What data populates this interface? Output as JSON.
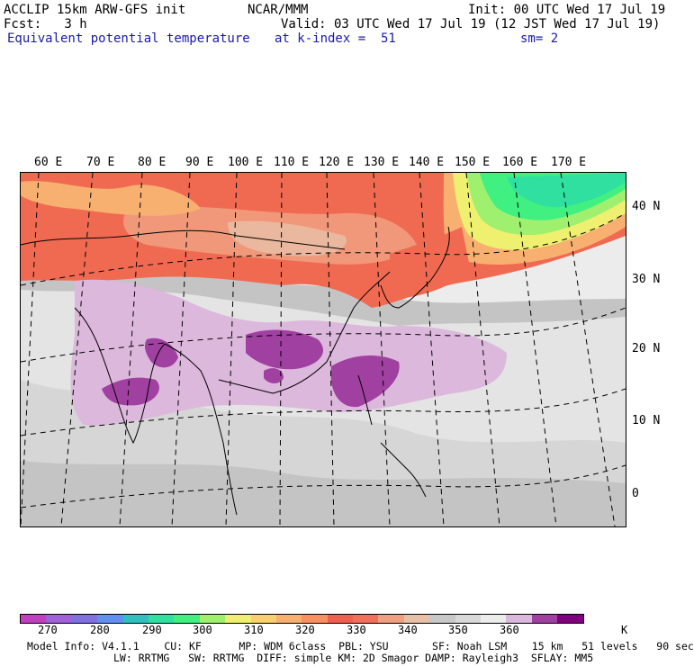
{
  "header": {
    "line1_left": "ACCLIP 15km ARW-GFS init",
    "line1_center": "NCAR/MMM",
    "line1_right": "Init: 00 UTC Wed 17 Jul 19",
    "line2_left": "Fcst:   3 h",
    "line2_right": "Valid: 03 UTC Wed 17 Jul 19 (12 JST Wed 17 Jul 19)",
    "line3_left": "Equivalent potential temperature",
    "line3_center": "at k-index =  51",
    "line3_right": "sm= 2"
  },
  "map": {
    "lon_labels": [
      "60 E",
      "70 E",
      "80 E",
      "90 E",
      "100 E",
      "110 E",
      "120 E",
      "130 E",
      "140 E",
      "150 E",
      "160 E",
      "170 E"
    ],
    "lat_labels": [
      "40 N",
      "30 N",
      "20 N",
      "10 N",
      "0"
    ]
  },
  "colorbar": {
    "colors": [
      "#c040c0",
      "#a060d8",
      "#8070e0",
      "#6090f0",
      "#30c0c0",
      "#30e0a0",
      "#40f080",
      "#a0f070",
      "#f0f070",
      "#f8d070",
      "#f8b070",
      "#f89060",
      "#f06050",
      "#f0705a",
      "#f0a080",
      "#e8c0a8",
      "#c8c8c8",
      "#d8d8d8",
      "#ececec",
      "#dcb8dc",
      "#a040a0",
      "#800080"
    ],
    "tick_labels": [
      "270",
      "280",
      "290",
      "300",
      "310",
      "320",
      "330",
      "340",
      "350",
      "360"
    ],
    "unit": "K"
  },
  "footer": {
    "line1": "Model Info: V4.1.1    CU: KF      MP: WDM 6class  PBL: YSU       SF: Noah LSM    15 km   51 levels   90 sec",
    "line2": "LW: RRTMG   SW: RRTMG  DIFF: simple KM: 2D Smagor DAMP: Rayleigh3  SFLAY: MM5"
  }
}
